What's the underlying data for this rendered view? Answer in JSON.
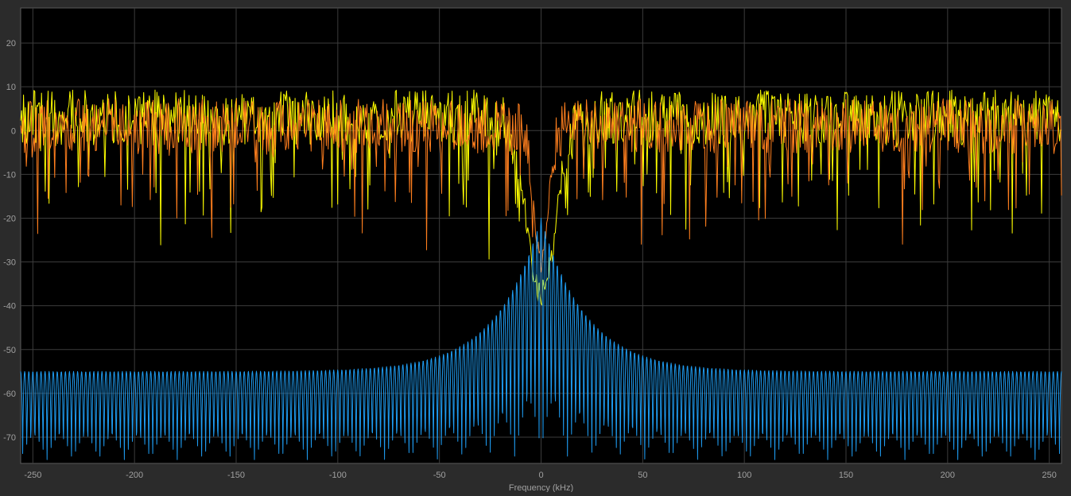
{
  "chart_data": {
    "type": "line",
    "xlabel": "Frequency (kHz)",
    "ylabel": "",
    "title": "",
    "xlim": [
      -256,
      256
    ],
    "ylim": [
      -76,
      28
    ],
    "xticks": [
      -250,
      -200,
      -150,
      -100,
      -50,
      0,
      50,
      100,
      150,
      200,
      250
    ],
    "yticks": [
      20,
      10,
      0,
      -10,
      -20,
      -30,
      -40,
      -50,
      -60,
      -70
    ],
    "grid": true,
    "background": "#000000",
    "series": [
      {
        "color": "#ffff00",
        "kind": "noisy-spectrum",
        "baseline": 3,
        "spread": 9,
        "center_dip_db": -37,
        "center_dip_halfwidth_khz": 10
      },
      {
        "color": "#ff7f1e",
        "kind": "noisy-spectrum",
        "baseline": 1,
        "spread": 9,
        "center_dip_db": -30,
        "center_dip_halfwidth_khz": 5
      },
      {
        "color": "#1e9bf0",
        "kind": "comb-spectrum",
        "peak_at_0": -20,
        "peak_at_edge": -55,
        "trough_db": -76,
        "comb_spacing_khz": 4
      }
    ]
  }
}
